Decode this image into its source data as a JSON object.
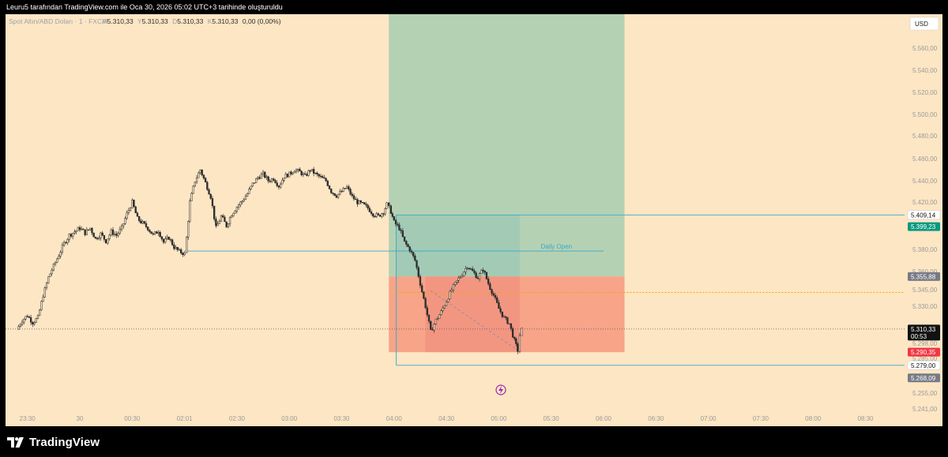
{
  "header": {
    "credit": "Leuru5 tarafından TradingView.com ile Oca 30, 2026 05:02 UTC+3 tarihinde oluşturuldu"
  },
  "legend": {
    "symbol": "Spot Altın/ABD Doları · 1 · FXCM",
    "o_label": "A",
    "o_value": "5.310,33",
    "h_label": "Y",
    "h_value": "5.310,33",
    "l_label": "D",
    "l_value": "5.310,33",
    "c_label": "K",
    "c_value": "5.310,33",
    "change": "0,00 (0,00%)"
  },
  "currency_button": "USD",
  "footer": {
    "brand": "TradingView"
  },
  "colors": {
    "background": "#fde6c4",
    "profit_zone": "#b5d1b4",
    "loss_zone": "#f7a489",
    "line": "#38a9c9",
    "up_candle": "#2c2c2c",
    "down_candle": "#2c2c2c",
    "target_badge": "#089981",
    "stop_badge": "#f23645",
    "level_badge": "#787b86"
  },
  "chart_data": {
    "type": "candlestick",
    "symbol": "XAUUSD",
    "timeframe": "1",
    "y_axis": {
      "range": [
        5235,
        5570
      ],
      "tick_labels": [
        "5.560,00",
        "5.540,00",
        "5.520,00",
        "5.500,00",
        "5.480,00",
        "5.460,00",
        "5.440,00",
        "5.420,00",
        "5.380,00",
        "5.360,00",
        "5.345,00",
        "5.330,00",
        "5.298,00",
        "5.285,00",
        "5.255,00",
        "5.241,00"
      ],
      "tick_values": [
        5560,
        5540,
        5520,
        5500,
        5480,
        5460,
        5440,
        5420,
        5380,
        5360,
        5345,
        5330,
        5298,
        5285,
        5255,
        5241
      ]
    },
    "x_axis": {
      "tick_labels": [
        "23:30",
        "30",
        "00:30",
        "02:01",
        "02:30",
        "03:00",
        "03:30",
        "04:00",
        "04:30",
        "05:00",
        "05:30",
        "06:00",
        "06:30",
        "07:00",
        "07:30",
        "08:00",
        "08:30"
      ],
      "tick_hours": [
        -0.5,
        0,
        0.5,
        1,
        1.5,
        2,
        2.5,
        3,
        3.5,
        4,
        4.5,
        5,
        5.5,
        6,
        6.5,
        7,
        7.5
      ]
    },
    "price_path": [
      [
        -0.6,
        5310
      ],
      [
        -0.55,
        5318
      ],
      [
        -0.5,
        5322
      ],
      [
        -0.45,
        5316
      ],
      [
        -0.4,
        5320
      ],
      [
        -0.35,
        5340
      ],
      [
        -0.3,
        5355
      ],
      [
        -0.25,
        5365
      ],
      [
        -0.2,
        5375
      ],
      [
        -0.15,
        5385
      ],
      [
        -0.1,
        5392
      ],
      [
        -0.05,
        5395
      ],
      [
        0,
        5398
      ],
      [
        0.05,
        5394
      ],
      [
        0.1,
        5398
      ],
      [
        0.15,
        5389
      ],
      [
        0.2,
        5393
      ],
      [
        0.25,
        5387
      ],
      [
        0.3,
        5395
      ],
      [
        0.35,
        5392
      ],
      [
        0.4,
        5398
      ],
      [
        0.45,
        5410
      ],
      [
        0.5,
        5420
      ],
      [
        0.55,
        5406
      ],
      [
        0.6,
        5402
      ],
      [
        0.65,
        5398
      ],
      [
        0.7,
        5392
      ],
      [
        0.75,
        5396
      ],
      [
        0.8,
        5386
      ],
      [
        0.85,
        5390
      ],
      [
        0.9,
        5382
      ],
      [
        0.95,
        5378
      ],
      [
        1.0,
        5376
      ],
      [
        1.02,
        5390
      ],
      [
        1.05,
        5420
      ],
      [
        1.1,
        5440
      ],
      [
        1.15,
        5450
      ],
      [
        1.2,
        5438
      ],
      [
        1.25,
        5425
      ],
      [
        1.3,
        5398
      ],
      [
        1.35,
        5408
      ],
      [
        1.4,
        5400
      ],
      [
        1.45,
        5410
      ],
      [
        1.5,
        5416
      ],
      [
        1.55,
        5421
      ],
      [
        1.6,
        5428
      ],
      [
        1.65,
        5437
      ],
      [
        1.7,
        5443
      ],
      [
        1.75,
        5446
      ],
      [
        1.8,
        5440
      ],
      [
        1.85,
        5442
      ],
      [
        1.9,
        5435
      ],
      [
        1.95,
        5444
      ],
      [
        2.0,
        5446
      ],
      [
        2.05,
        5450
      ],
      [
        2.1,
        5448
      ],
      [
        2.15,
        5444
      ],
      [
        2.2,
        5450
      ],
      [
        2.25,
        5446
      ],
      [
        2.3,
        5443
      ],
      [
        2.35,
        5440
      ],
      [
        2.4,
        5430
      ],
      [
        2.45,
        5426
      ],
      [
        2.5,
        5430
      ],
      [
        2.55,
        5434
      ],
      [
        2.6,
        5425
      ],
      [
        2.65,
        5420
      ],
      [
        2.7,
        5418
      ],
      [
        2.75,
        5415
      ],
      [
        2.8,
        5410
      ],
      [
        2.85,
        5408
      ],
      [
        2.9,
        5412
      ],
      [
        2.93,
        5418
      ],
      [
        2.97,
        5412
      ],
      [
        3.0,
        5403
      ],
      [
        3.05,
        5398
      ],
      [
        3.1,
        5386
      ],
      [
        3.15,
        5380
      ],
      [
        3.2,
        5370
      ],
      [
        3.25,
        5350
      ],
      [
        3.3,
        5330
      ],
      [
        3.35,
        5308
      ],
      [
        3.4,
        5318
      ],
      [
        3.45,
        5325
      ],
      [
        3.5,
        5335
      ],
      [
        3.55,
        5345
      ],
      [
        3.6,
        5352
      ],
      [
        3.65,
        5358
      ],
      [
        3.7,
        5365
      ],
      [
        3.75,
        5360
      ],
      [
        3.8,
        5355
      ],
      [
        3.85,
        5362
      ],
      [
        3.9,
        5350
      ],
      [
        3.95,
        5340
      ],
      [
        4.0,
        5328
      ],
      [
        4.05,
        5320
      ],
      [
        4.1,
        5315
      ],
      [
        4.15,
        5300
      ],
      [
        4.18,
        5292
      ],
      [
        4.2,
        5305
      ],
      [
        4.22,
        5310
      ]
    ],
    "series": [
      {
        "name": "Daily Open",
        "value": 5378.5
      }
    ],
    "position": {
      "type": "short",
      "entry": 5355.88,
      "target": 5570,
      "stop": 5290.35,
      "start_hour": 2.95,
      "end_hour": 5.2
    },
    "levels": {
      "box_top": 5409.14,
      "box_bottom": 5279.0,
      "box_start_hour": 3.02,
      "orange_dotted": 5342.5,
      "current": 5310.33
    },
    "price_labels": [
      {
        "text": "5.409,14",
        "value": 5409.14,
        "style": "white"
      },
      {
        "text": "5.399,23",
        "value": 5399.23,
        "style": "green"
      },
      {
        "text": "5.355,88",
        "value": 5355.88,
        "style": "gray"
      },
      {
        "text": "5.310,33",
        "value": 5310.33,
        "style": "black",
        "extra": "00:53"
      },
      {
        "text": "5.290,35",
        "value": 5290.35,
        "style": "red"
      },
      {
        "text": "5.279,00",
        "value": 5279.0,
        "style": "white"
      },
      {
        "text": "5.268,09",
        "value": 5268.09,
        "style": "gray"
      }
    ]
  }
}
